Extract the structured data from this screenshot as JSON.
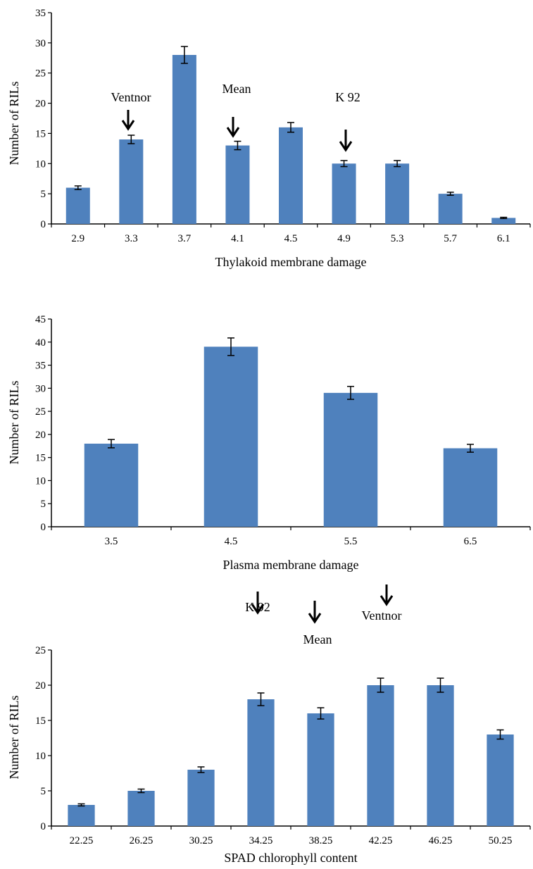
{
  "chart_data": [
    {
      "type": "bar",
      "xlabel": "Thylakoid membrane damage",
      "ylabel": "Number of RILs",
      "ylim": [
        0,
        35
      ],
      "yticks": [
        0,
        5,
        10,
        15,
        20,
        25,
        30,
        35
      ],
      "categories": [
        "2.9",
        "3.3",
        "3.7",
        "4.1",
        "4.5",
        "4.9",
        "5.3",
        "5.7",
        "6.1"
      ],
      "values": [
        6,
        14,
        28,
        13,
        16,
        10,
        10,
        5,
        1
      ],
      "error": [
        0.3,
        0.7,
        1.4,
        0.7,
        0.8,
        0.5,
        0.5,
        0.25,
        0.1
      ],
      "bar_color": "#4f81bd",
      "annotations": [
        {
          "text": "Ventnor",
          "category": "3.3"
        },
        {
          "text": "Mean",
          "category": "4.1"
        },
        {
          "text": "K 92",
          "category": "4.9"
        }
      ]
    },
    {
      "type": "bar",
      "xlabel": "Plasma membrane damage",
      "ylabel": "Number of RILs",
      "ylim": [
        0,
        45
      ],
      "yticks": [
        0,
        5,
        10,
        15,
        20,
        25,
        30,
        35,
        40,
        45
      ],
      "categories": [
        "3.5",
        "4.5",
        "5.5",
        "6.5"
      ],
      "values": [
        18,
        39,
        29,
        17
      ],
      "error": [
        0.9,
        1.9,
        1.4,
        0.85
      ],
      "bar_color": "#4f81bd",
      "annotations": []
    },
    {
      "type": "bar",
      "xlabel": "SPAD chlorophyll content",
      "ylabel": "Number of RILs",
      "ylim": [
        0,
        25
      ],
      "yticks": [
        0,
        5,
        10,
        15,
        20,
        25
      ],
      "categories": [
        "22.25",
        "26.25",
        "30.25",
        "34.25",
        "38.25",
        "42.25",
        "46.25",
        "50.25"
      ],
      "values": [
        3,
        5,
        8,
        18,
        16,
        20,
        20,
        13
      ],
      "error": [
        0.15,
        0.25,
        0.4,
        0.9,
        0.8,
        1.0,
        1.0,
        0.65
      ],
      "bar_color": "#4f81bd",
      "annotations": [
        {
          "text": "K 92",
          "category": "34.25"
        },
        {
          "text": "Mean",
          "category": "38.25"
        },
        {
          "text": "Ventnor",
          "category": "42.25"
        }
      ]
    }
  ]
}
